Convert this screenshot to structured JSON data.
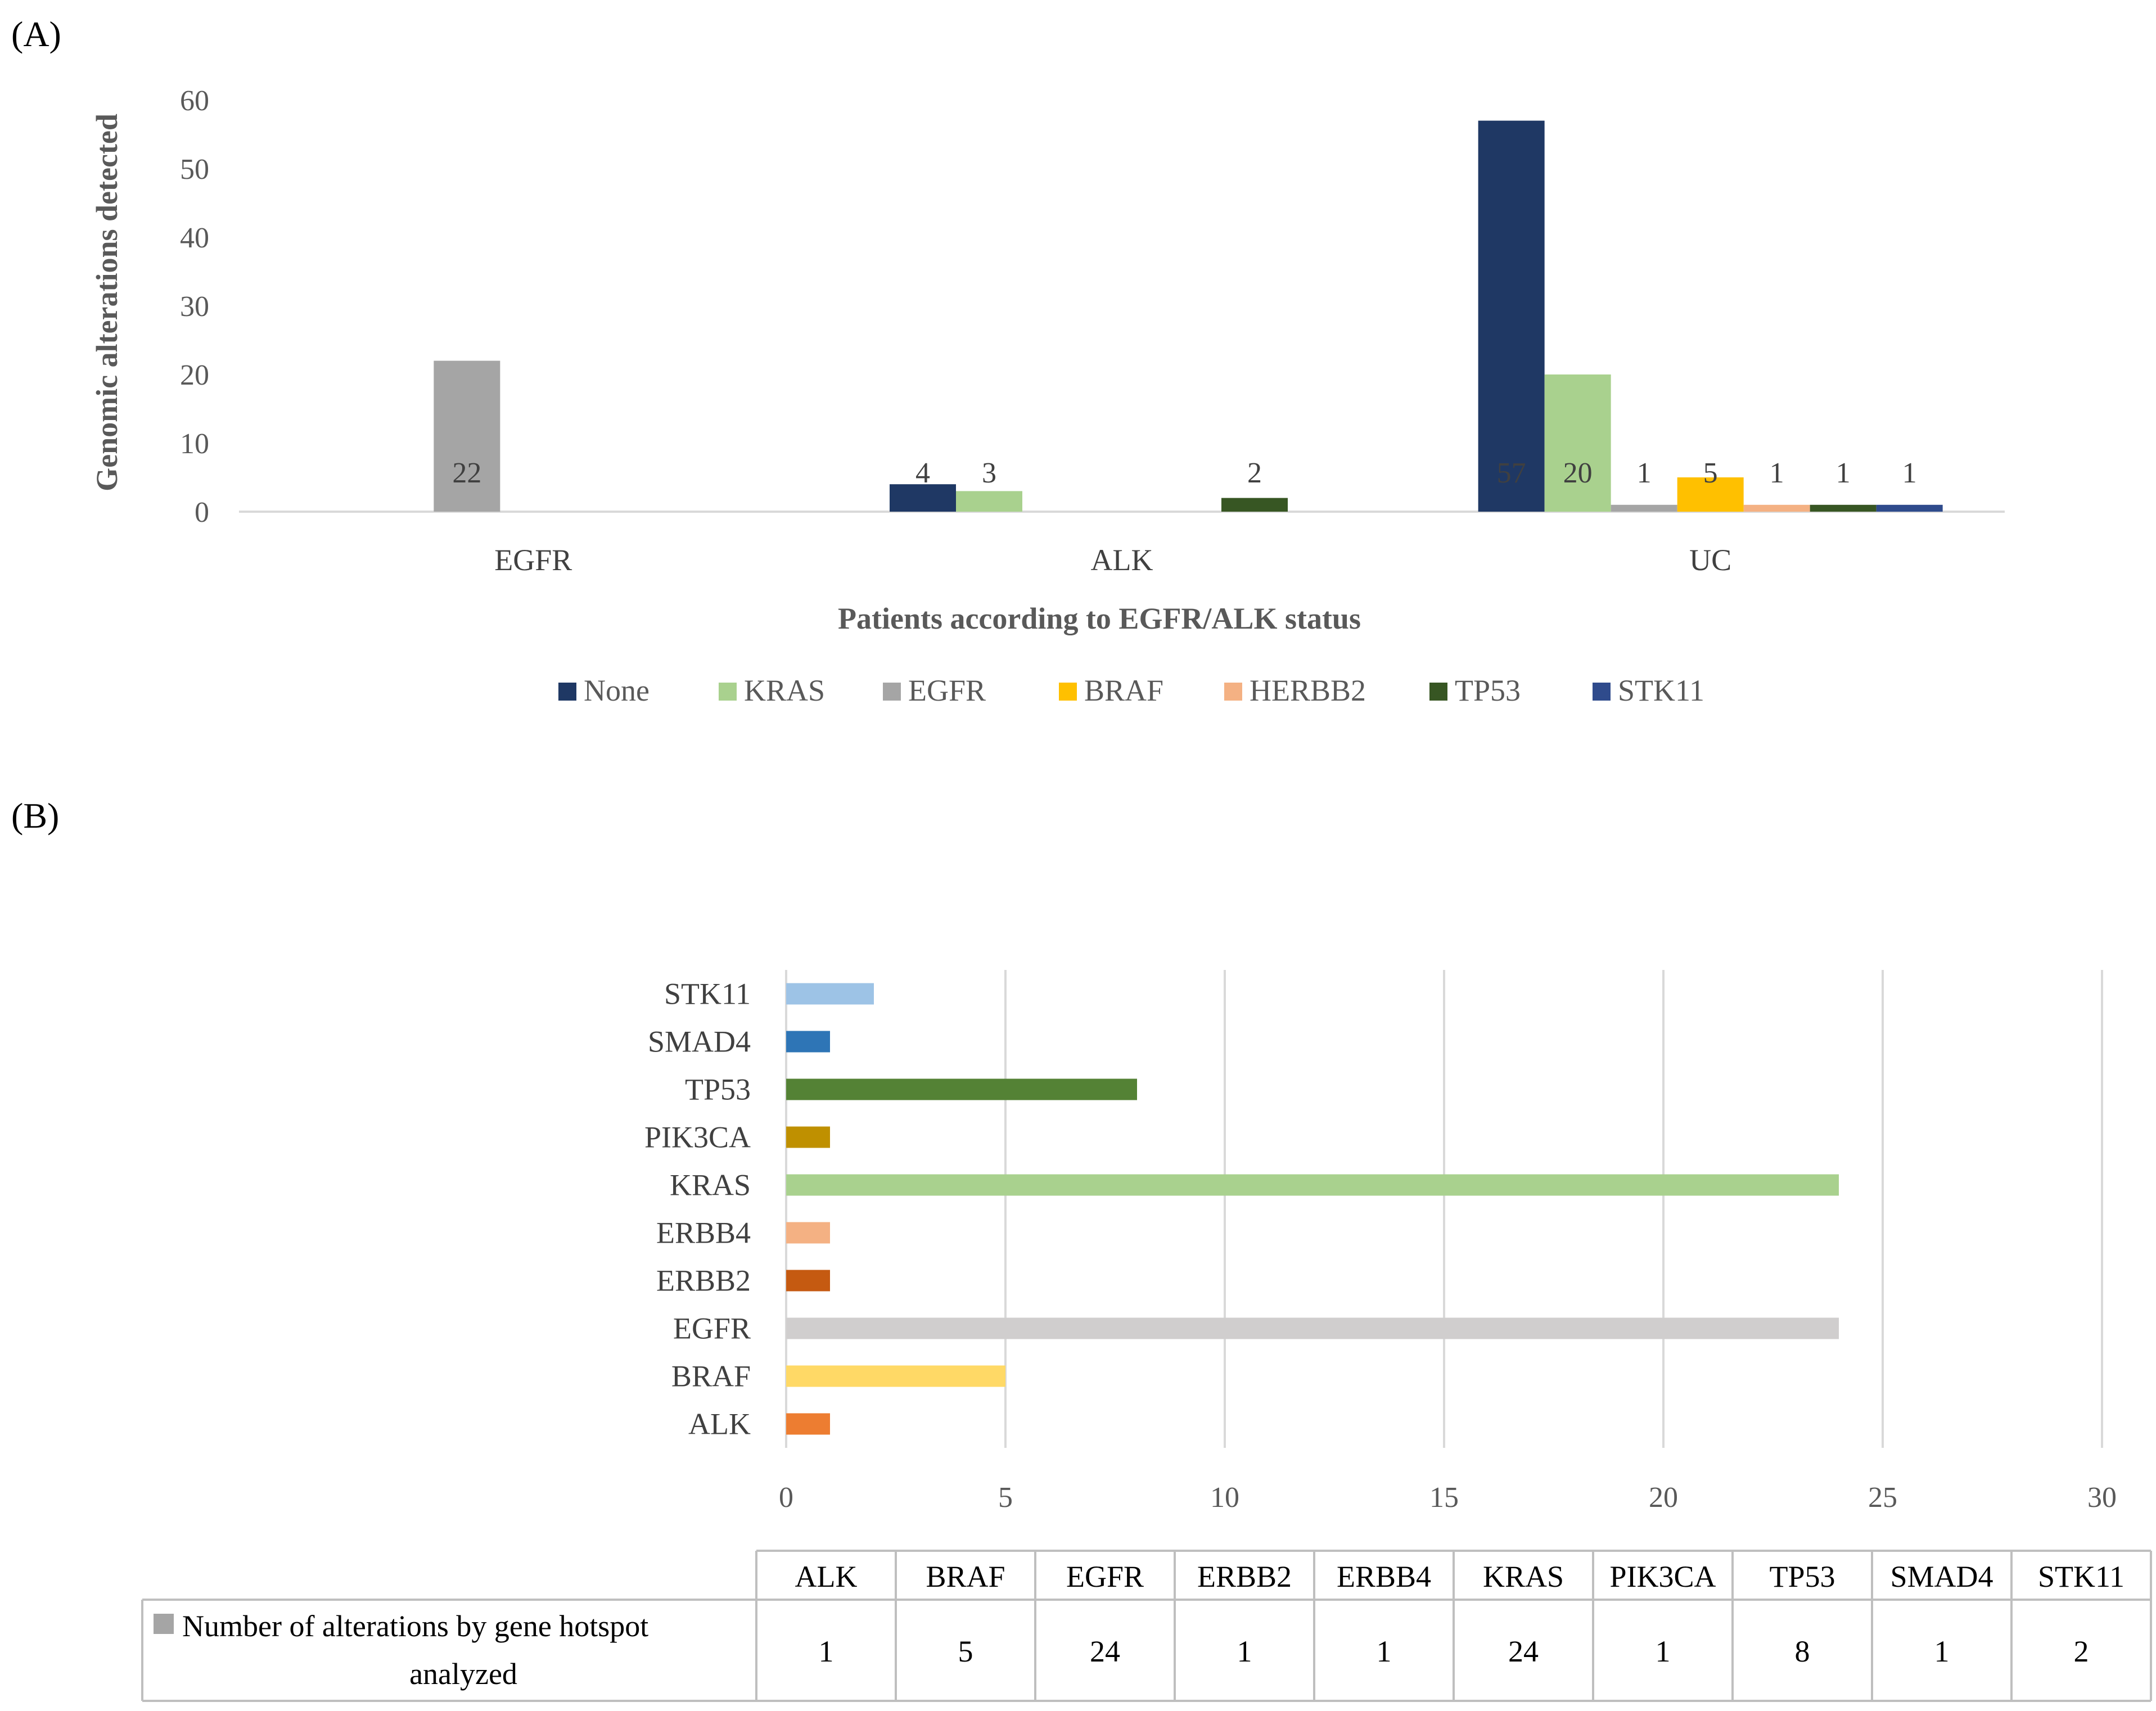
{
  "panel_a_label": "(A)",
  "panel_b_label": "(B)",
  "chart_data": [
    {
      "type": "bar",
      "orientation": "vertical",
      "categories": [
        "EGFR",
        "ALK",
        "UC"
      ],
      "series": [
        {
          "name": "None",
          "color": "#1f3864",
          "values": [
            null,
            4,
            57
          ]
        },
        {
          "name": "KRAS",
          "color": "#a9d18e",
          "values": [
            null,
            3,
            20
          ]
        },
        {
          "name": "EGFR",
          "color": "#a5a5a5",
          "values": [
            22,
            null,
            1
          ]
        },
        {
          "name": "BRAF",
          "color": "#ffc000",
          "values": [
            null,
            null,
            5
          ]
        },
        {
          "name": "HERBB2",
          "color": "#f4b183",
          "values": [
            null,
            null,
            1
          ]
        },
        {
          "name": "TP53",
          "color": "#375623",
          "values": [
            null,
            2,
            1
          ]
        },
        {
          "name": "STK11",
          "color": "#2f4b8c",
          "values": [
            null,
            null,
            1
          ]
        }
      ],
      "ylabel": "Genomic alterations detected",
      "xlabel": "Patients according to EGFR/ALK status",
      "ylim": [
        0,
        60
      ],
      "yticks": [
        "0",
        "10",
        "20",
        "30",
        "40",
        "50",
        "60"
      ],
      "legend_position": "bottom"
    },
    {
      "type": "bar",
      "orientation": "horizontal",
      "categories": [
        "ALK",
        "BRAF",
        "EGFR",
        "ERBB2",
        "ERBB4",
        "KRAS",
        "PIK3CA",
        "TP53",
        "SMAD4",
        "STK11"
      ],
      "values": [
        1,
        5,
        24,
        1,
        1,
        24,
        1,
        8,
        1,
        2
      ],
      "colors": [
        "#ed7d31",
        "#ffd966",
        "#d0cece",
        "#c55a11",
        "#f4b183",
        "#a9d18e",
        "#bf9000",
        "#548235",
        "#2e75b6",
        "#9dc3e6"
      ],
      "xlim": [
        0,
        30
      ],
      "xticks": [
        "0",
        "5",
        "10",
        "15",
        "20",
        "25",
        "30"
      ],
      "grid": true,
      "table_series_name": "Number of alterations by gene hotspot analyzed",
      "table_legend_color": "#a5a5a5"
    }
  ]
}
